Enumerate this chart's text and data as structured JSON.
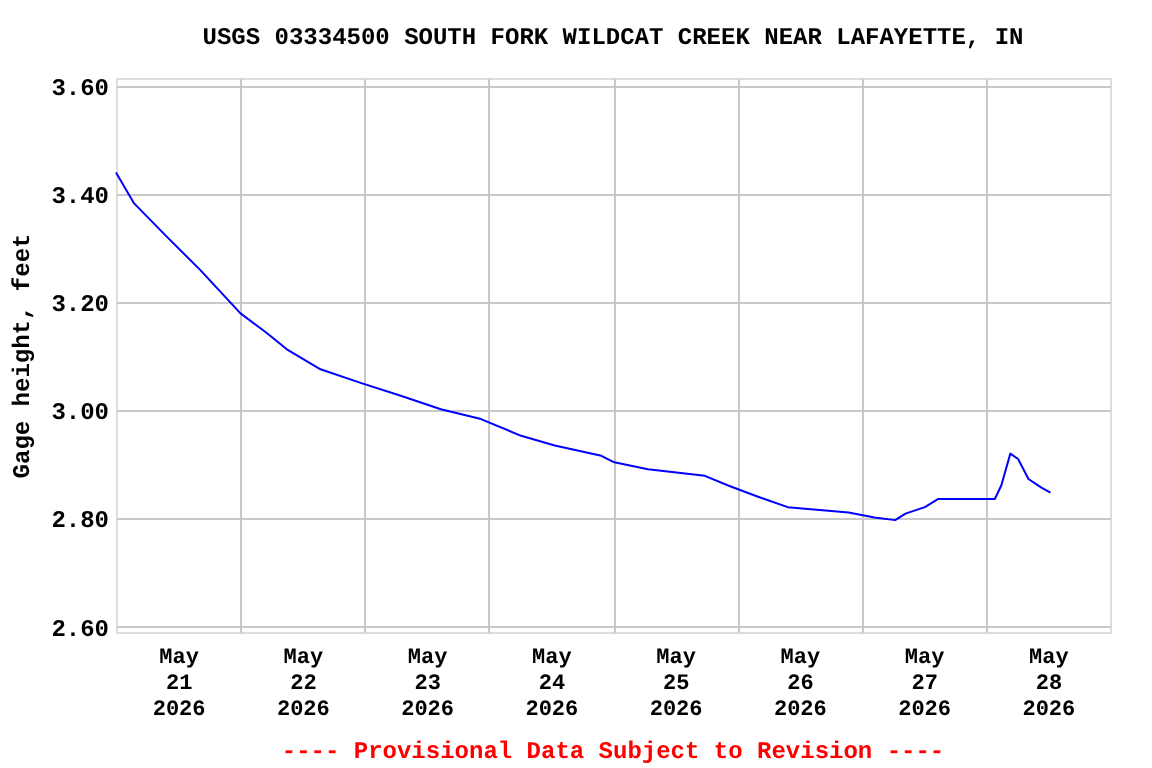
{
  "chart_data": {
    "type": "line",
    "title": "USGS 03334500 SOUTH FORK WILDCAT CREEK NEAR LAFAYETTE, IN",
    "ylabel": "Gage height, feet",
    "annotations": [
      "---- Provisional Data Subject to Revision ----"
    ],
    "x": [
      "2026-05-21T00:00",
      "2026-05-21T03:30",
      "2026-05-21T09:45",
      "2026-05-21T16:15",
      "2026-05-21T22:45",
      "2026-05-22T00:00",
      "2026-05-22T05:00",
      "2026-05-22T09:00",
      "2026-05-22T15:30",
      "2026-05-22T23:15",
      "2026-05-23T07:00",
      "2026-05-23T14:45",
      "2026-05-23T22:30",
      "2026-05-24T06:15",
      "2026-05-24T12:45",
      "2026-05-24T21:45",
      "2026-05-25T00:15",
      "2026-05-25T06:45",
      "2026-05-25T17:45",
      "2026-05-25T22:15",
      "2026-05-26T03:30",
      "2026-05-26T09:45",
      "2026-05-26T21:30",
      "2026-05-27T02:30",
      "2026-05-27T06:30",
      "2026-05-27T08:30",
      "2026-05-27T12:15",
      "2026-05-27T14:45",
      "2026-05-28T01:45",
      "2026-05-28T03:00",
      "2026-05-28T04:45",
      "2026-05-28T06:15",
      "2026-05-28T08:15",
      "2026-05-28T10:45",
      "2026-05-28T12:30"
    ],
    "series": [
      {
        "color": "#0000ff",
        "values": [
          3.44,
          3.383,
          3.322,
          3.26,
          3.193,
          3.18,
          3.144,
          3.113,
          3.076,
          3.051,
          3.027,
          3.002,
          2.984,
          2.953,
          2.935,
          2.916,
          2.904,
          2.891,
          2.879,
          2.861,
          2.842,
          2.821,
          2.811,
          2.802,
          2.797,
          2.809,
          2.821,
          2.836,
          2.836,
          2.861,
          2.92,
          2.91,
          2.873,
          2.857,
          2.848
        ]
      }
    ],
    "xlim": [
      "2026-05-21T00:00",
      "2026-05-29T00:00"
    ],
    "xticks": [
      {
        "value": "2026-05-21T12:00",
        "label": "May\n21\n2026"
      },
      {
        "value": "2026-05-22T00:00",
        "label": null
      },
      {
        "value": "2026-05-22T12:00",
        "label": "May\n22\n2026"
      },
      {
        "value": "2026-05-23T00:00",
        "label": null
      },
      {
        "value": "2026-05-23T12:00",
        "label": "May\n23\n2026"
      },
      {
        "value": "2026-05-24T00:00",
        "label": null
      },
      {
        "value": "2026-05-24T12:00",
        "label": "May\n24\n2026"
      },
      {
        "value": "2026-05-25T00:00",
        "label": null
      },
      {
        "value": "2026-05-25T12:00",
        "label": "May\n25\n2026"
      },
      {
        "value": "2026-05-26T00:00",
        "label": null
      },
      {
        "value": "2026-05-26T12:00",
        "label": "May\n26\n2026"
      },
      {
        "value": "2026-05-27T00:00",
        "label": null
      },
      {
        "value": "2026-05-27T12:00",
        "label": "May\n27\n2026"
      },
      {
        "value": "2026-05-28T00:00",
        "label": null
      },
      {
        "value": "2026-05-28T12:00",
        "label": "May\n28\n2026"
      }
    ],
    "ylim": [
      2.59,
      3.615
    ],
    "yticks": [
      {
        "value": 2.6,
        "label": "2.60"
      },
      {
        "value": 2.8,
        "label": "2.80"
      },
      {
        "value": 3.0,
        "label": "3.00"
      },
      {
        "value": 3.2,
        "label": "3.20"
      },
      {
        "value": 3.4,
        "label": "3.40"
      },
      {
        "value": 3.6,
        "label": "3.60"
      }
    ],
    "grid": true,
    "line_style": "solid"
  }
}
